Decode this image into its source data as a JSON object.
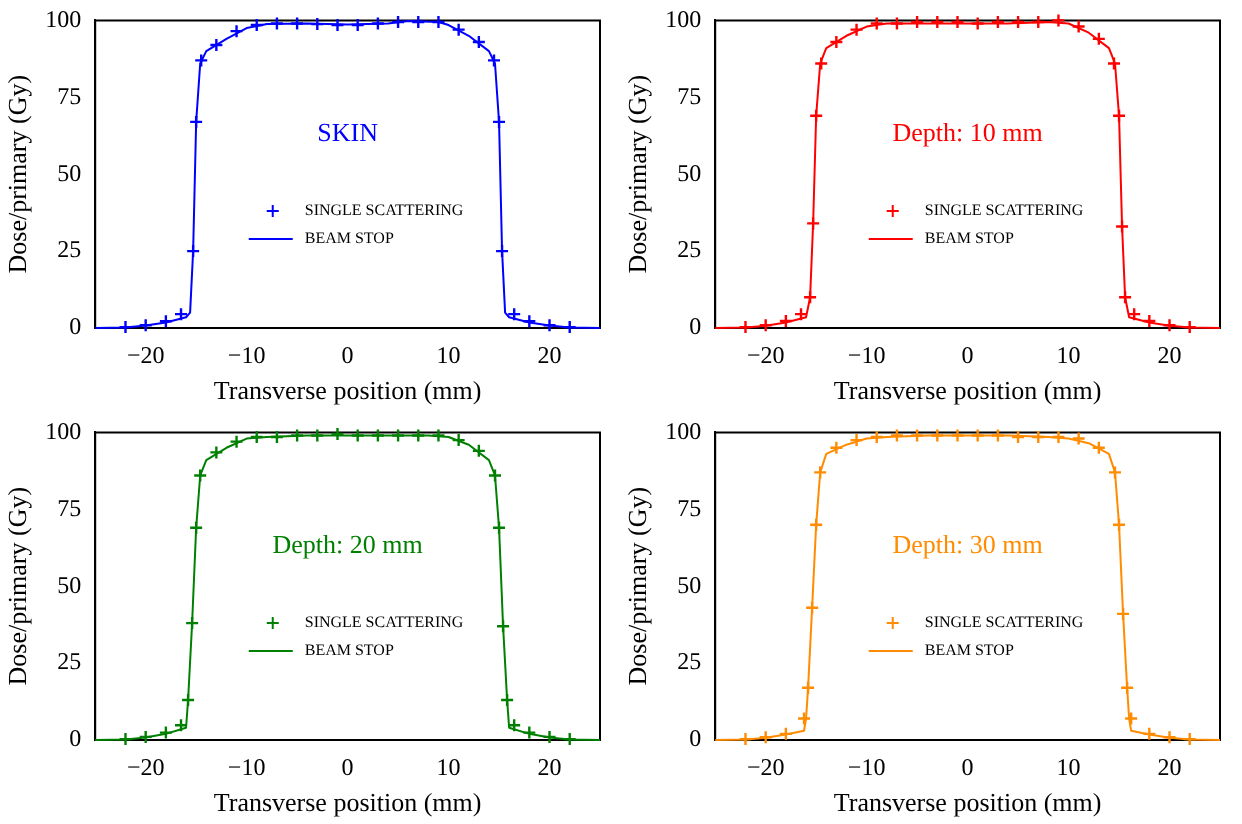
{
  "chart_data": [
    {
      "type": "line",
      "xlabel": "Transverse position (mm)",
      "ylabel": "Dose/primary (Gy)",
      "annotations": [
        "SKIN"
      ],
      "xlim": [
        -25,
        25
      ],
      "xticks": [
        -20,
        -10,
        0,
        10,
        20
      ],
      "ylim": [
        0,
        100
      ],
      "yticks": [
        0,
        25,
        50,
        75,
        100
      ],
      "legend": "center",
      "series": [
        {
          "name": "SINGLE SCATTERING",
          "type": "scatter",
          "marker": "cross",
          "color": "#0000ff",
          "x": [
            -22,
            -20,
            -18,
            -16.5,
            -15.3,
            -15,
            -14.5,
            -13,
            -11,
            -9,
            -7,
            -5,
            -3,
            -1,
            1,
            3,
            5,
            7,
            9,
            11,
            13,
            14.5,
            15,
            15.3,
            16.5,
            18,
            20,
            22
          ],
          "values": [
            0.3,
            0.9,
            2.2,
            4.5,
            25,
            67,
            87,
            92,
            96.5,
            98.5,
            99,
            99,
            98.8,
            98.5,
            98.5,
            99,
            99.5,
            99.5,
            99.5,
            97,
            93,
            87,
            67,
            25,
            4.5,
            2.2,
            0.9,
            0.3
          ]
        },
        {
          "name": "BEAM STOP",
          "type": "line",
          "color": "#0000ff",
          "x": [
            -25,
            -22,
            -20,
            -18,
            -16,
            -15.6,
            -15.3,
            -15,
            -14.6,
            -14,
            -12,
            -10,
            -8,
            -4,
            0,
            4,
            6,
            9,
            10,
            12,
            14,
            14.6,
            15,
            15.3,
            15.6,
            16,
            18,
            20,
            22,
            25
          ],
          "values": [
            0,
            0.2,
            0.8,
            1.8,
            3.5,
            5,
            25,
            67,
            86,
            90,
            94,
            97.5,
            98.8,
            99,
            98.7,
            99,
            99.8,
            99.5,
            98.5,
            95,
            90,
            86,
            67,
            25,
            5,
            3.5,
            1.8,
            0.8,
            0.2,
            0
          ]
        }
      ]
    },
    {
      "type": "line",
      "xlabel": "Transverse position (mm)",
      "ylabel": "Dose/primary (Gy)",
      "annotations": [
        "Depth: 10 mm"
      ],
      "xlim": [
        -25,
        25
      ],
      "xticks": [
        -20,
        -10,
        0,
        10,
        20
      ],
      "ylim": [
        0,
        100
      ],
      "yticks": [
        0,
        25,
        50,
        75,
        100
      ],
      "legend": "center",
      "series": [
        {
          "name": "SINGLE SCATTERING",
          "type": "scatter",
          "marker": "cross",
          "color": "#ff0000",
          "x": [
            -22,
            -20,
            -18,
            -16.5,
            -15.6,
            -15.3,
            -15,
            -14.5,
            -13,
            -11,
            -9,
            -7,
            -5,
            -3,
            -1,
            1,
            3,
            5,
            7,
            9,
            11,
            13,
            14.5,
            15,
            15.3,
            15.6,
            16.5,
            18,
            20,
            22
          ],
          "values": [
            0.3,
            0.9,
            2.3,
            4.5,
            10,
            34,
            69,
            86,
            93,
            97,
            99,
            99,
            99.5,
            99.5,
            99.5,
            99,
            99.5,
            99.5,
            99.5,
            100,
            98,
            94,
            86,
            69,
            33,
            10,
            4.5,
            2.3,
            0.9,
            0.3
          ]
        },
        {
          "name": "BEAM STOP",
          "type": "line",
          "color": "#ff0000",
          "x": [
            -25,
            -22,
            -20,
            -18,
            -16,
            -15.6,
            -15.3,
            -15,
            -14.6,
            -14,
            -12,
            -10,
            -8,
            -4,
            0,
            4,
            8,
            10,
            12,
            14,
            14.6,
            15,
            15.3,
            15.6,
            16,
            18,
            20,
            22,
            25
          ],
          "values": [
            0,
            0.2,
            0.7,
            1.8,
            3.5,
            10,
            34,
            69,
            86,
            91,
            95,
            98,
            99,
            99,
            99,
            99,
            99.5,
            99,
            96,
            91,
            86,
            69,
            33,
            10,
            3.5,
            1.8,
            0.7,
            0.2,
            0
          ]
        }
      ]
    },
    {
      "type": "line",
      "xlabel": "Transverse position (mm)",
      "ylabel": "Dose/primary (Gy)",
      "annotations": [
        "Depth: 20 mm"
      ],
      "xlim": [
        -25,
        25
      ],
      "xticks": [
        -20,
        -10,
        0,
        10,
        20
      ],
      "ylim": [
        0,
        100
      ],
      "yticks": [
        0,
        25,
        50,
        75,
        100
      ],
      "legend": "center",
      "series": [
        {
          "name": "SINGLE SCATTERING",
          "type": "scatter",
          "marker": "cross",
          "color": "#008000",
          "x": [
            -22,
            -20,
            -18,
            -16.5,
            -15.8,
            -15.4,
            -15,
            -14.6,
            -13,
            -11,
            -9,
            -7,
            -5,
            -3,
            -1,
            1,
            3,
            5,
            7,
            9,
            11,
            13,
            14.6,
            15,
            15.4,
            15.8,
            16.5,
            18,
            20,
            22
          ],
          "values": [
            0.3,
            1,
            2.4,
            4.8,
            13,
            38,
            69,
            86,
            93.5,
            97,
            98.5,
            98.5,
            99,
            99,
            99.5,
            99,
            99,
            99,
            99,
            99,
            97.5,
            94,
            86,
            69,
            37,
            13,
            4.8,
            2.4,
            1,
            0.3
          ]
        },
        {
          "name": "BEAM STOP",
          "type": "line",
          "color": "#008000",
          "x": [
            -25,
            -22,
            -20,
            -18,
            -16,
            -15.8,
            -15.4,
            -15,
            -14.6,
            -14,
            -12,
            -10,
            -8,
            -4,
            0,
            4,
            8,
            10,
            12,
            14,
            14.6,
            15,
            15.4,
            15.8,
            16,
            18,
            20,
            22,
            25
          ],
          "values": [
            0,
            0.2,
            0.8,
            2,
            4,
            13,
            38,
            69,
            86,
            91,
            95,
            98,
            98.5,
            99,
            99,
            99,
            99,
            98.5,
            96,
            91,
            86,
            69,
            37,
            13,
            4,
            2,
            0.8,
            0.2,
            0
          ]
        }
      ]
    },
    {
      "type": "line",
      "xlabel": "Transverse position (mm)",
      "ylabel": "Dose/primary (Gy)",
      "annotations": [
        "Depth: 30 mm"
      ],
      "xlim": [
        -25,
        25
      ],
      "xticks": [
        -20,
        -10,
        0,
        10,
        20
      ],
      "ylim": [
        0,
        100
      ],
      "yticks": [
        0,
        25,
        50,
        75,
        100
      ],
      "legend": "center",
      "series": [
        {
          "name": "SINGLE SCATTERING",
          "type": "scatter",
          "marker": "cross",
          "color": "#ff8c00",
          "x": [
            -22,
            -20,
            -18,
            -16.2,
            -15.8,
            -15.4,
            -15,
            -14.6,
            -13,
            -11,
            -9,
            -7,
            -5,
            -3,
            -1,
            1,
            3,
            5,
            7,
            9,
            11,
            13,
            14.6,
            15,
            15.4,
            15.8,
            16.2,
            18,
            20,
            22
          ],
          "values": [
            0.3,
            0.9,
            2,
            7,
            17,
            43,
            70,
            87,
            95,
            97.5,
            98.5,
            99,
            99,
            99,
            99,
            99,
            99,
            98.5,
            98.5,
            98.5,
            98,
            95,
            87,
            70,
            41,
            17,
            7,
            2,
            0.9,
            0.3
          ]
        },
        {
          "name": "BEAM STOP",
          "type": "line",
          "color": "#ff8c00",
          "x": [
            -25,
            -22,
            -20,
            -18,
            -16.2,
            -16,
            -15.8,
            -15.4,
            -15,
            -14.6,
            -14,
            -12,
            -10,
            -8,
            -4,
            0,
            4,
            8,
            10,
            12,
            14,
            14.6,
            15,
            15.4,
            15.8,
            16,
            16.2,
            18,
            20,
            22,
            25
          ],
          "values": [
            0,
            0.2,
            0.7,
            1.8,
            3,
            7,
            17,
            43,
            70,
            87,
            93,
            96,
            98,
            98.5,
            99,
            99,
            99,
            98.5,
            98,
            96.5,
            93,
            87,
            70,
            41,
            17,
            7,
            3,
            1.8,
            0.7,
            0.2,
            0
          ]
        }
      ]
    }
  ]
}
